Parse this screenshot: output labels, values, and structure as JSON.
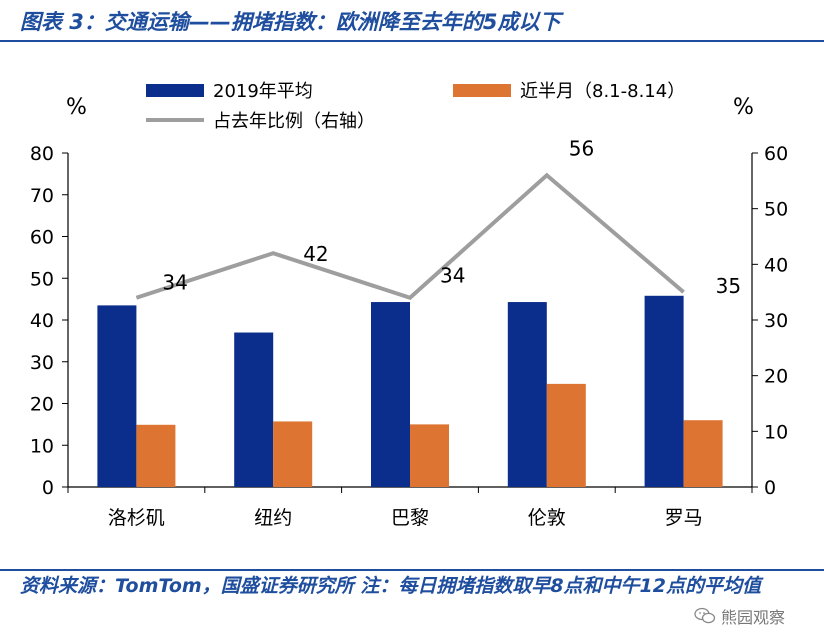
{
  "title": "图表 3：交通运输——拥堵指数：欧洲降至去年的5成以下",
  "source": "资料来源：TomTom，国盛证券研究所 注：每日拥堵指数取早8点和中午12点的平均值",
  "watermark": "熊园观察",
  "colors": {
    "series_2019": "#0b2d8c",
    "series_recent": "#dd7431",
    "series_ratio": "#9e9e9e",
    "accent": "#1f4e9e"
  },
  "chart_data": {
    "type": "bar",
    "categories": [
      "洛杉矶",
      "纽约",
      "巴黎",
      "伦敦",
      "罗马"
    ],
    "series": [
      {
        "name": "2019年平均",
        "axis": "left",
        "type": "bar",
        "values": [
          43.5,
          37,
          44.3,
          44.3,
          45.8
        ]
      },
      {
        "name": "近半月（8.1-8.14）",
        "axis": "left",
        "type": "bar",
        "values": [
          14.9,
          15.7,
          15,
          24.7,
          16
        ]
      },
      {
        "name": "占去年比例（右轴）",
        "axis": "right",
        "type": "line",
        "values": [
          34,
          42,
          34,
          56,
          35
        ]
      }
    ],
    "data_labels": [
      "34",
      "42",
      "34",
      "56",
      "35"
    ],
    "y_left": {
      "unit": "%",
      "ylim": [
        0,
        80
      ],
      "ticks": [
        "0",
        "10",
        "20",
        "30",
        "40",
        "50",
        "60",
        "70",
        "80"
      ]
    },
    "y_right": {
      "unit": "%",
      "ylim": [
        0,
        60
      ],
      "ticks": [
        "0",
        "10",
        "20",
        "30",
        "40",
        "50",
        "60"
      ]
    },
    "grid": false,
    "legend_position": "top"
  }
}
